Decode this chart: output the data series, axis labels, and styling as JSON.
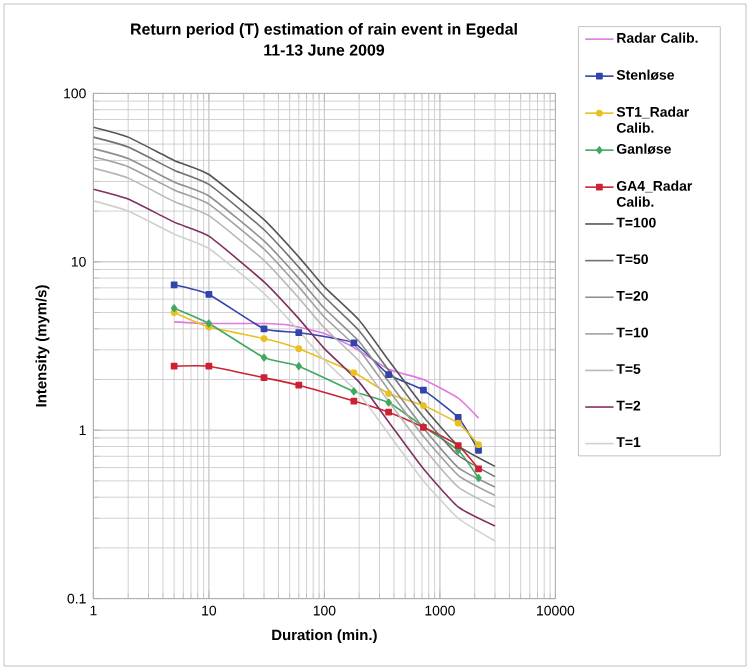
{
  "chart_data": {
    "type": "line",
    "title": "Return period (T) estimation of rain event in Egedal",
    "subtitle": "11-13 June 2009",
    "xlabel": "Duration (min.)",
    "ylabel": "Intensity (mym/s)",
    "log": "xy",
    "grid": true,
    "legend": "right",
    "xlim": [
      1,
      10000
    ],
    "ylim": [
      0.1,
      100
    ],
    "xticks": [
      1,
      10,
      100,
      1000,
      10000
    ],
    "yticks": [
      0.1,
      1,
      10,
      100
    ],
    "series": [
      {
        "name": "Radar Calib.",
        "color": "#e07ae0",
        "marker": "none",
        "x": [
          5,
          10,
          30,
          50,
          100,
          180,
          360,
          720,
          1440,
          2160
        ],
        "values": [
          4.4,
          4.3,
          4.3,
          4.2,
          3.75,
          3.1,
          2.3,
          2.0,
          1.55,
          1.18
        ]
      },
      {
        "name": "Stenløse",
        "color": "#3344aa",
        "marker": "square",
        "x": [
          5,
          10,
          30,
          60,
          180,
          360,
          720,
          1440,
          2160
        ],
        "values": [
          7.3,
          6.4,
          4.0,
          3.8,
          3.3,
          2.14,
          1.73,
          1.19,
          0.76
        ]
      },
      {
        "name": "ST1_Radar Calib.",
        "color": "#e8c020",
        "marker": "circle",
        "x": [
          5,
          10,
          30,
          60,
          180,
          360,
          720,
          1440,
          2160
        ],
        "values": [
          5.0,
          4.1,
          3.5,
          3.05,
          2.2,
          1.65,
          1.4,
          1.1,
          0.82
        ]
      },
      {
        "name": "Ganløse",
        "color": "#40a860",
        "marker": "diamond",
        "x": [
          5,
          10,
          30,
          60,
          180,
          360,
          720,
          1440,
          2160
        ],
        "values": [
          5.3,
          4.3,
          2.7,
          2.4,
          1.7,
          1.46,
          1.05,
          0.76,
          0.52
        ]
      },
      {
        "name": "GA4_Radar Calib.",
        "color": "#cc2233",
        "marker": "square",
        "x": [
          5,
          10,
          30,
          60,
          180,
          360,
          720,
          1440,
          2160
        ],
        "values": [
          2.4,
          2.4,
          2.05,
          1.85,
          1.49,
          1.28,
          1.04,
          0.81,
          0.59
        ]
      },
      {
        "name": "T=100",
        "color": "#555555",
        "marker": "none",
        "x": [
          1,
          2,
          5,
          10,
          30,
          60,
          100,
          200,
          360,
          720,
          1440,
          3000
        ],
        "values": [
          63,
          55,
          40,
          33,
          17.8,
          10.7,
          7.1,
          4.5,
          2.6,
          1.38,
          0.81,
          0.61
        ]
      },
      {
        "name": "T=50",
        "color": "#707070",
        "marker": "none",
        "x": [
          1,
          2,
          5,
          10,
          30,
          60,
          100,
          200,
          360,
          720,
          1440,
          3000
        ],
        "values": [
          55,
          48,
          35,
          28.8,
          15.5,
          9.3,
          6.2,
          3.9,
          2.27,
          1.2,
          0.71,
          0.53
        ]
      },
      {
        "name": "T=20",
        "color": "#909090",
        "marker": "none",
        "x": [
          1,
          2,
          5,
          10,
          30,
          60,
          100,
          200,
          360,
          720,
          1440,
          3000
        ],
        "values": [
          47,
          41,
          29.8,
          24.6,
          13.3,
          8.0,
          5.3,
          3.36,
          1.94,
          1.03,
          0.6,
          0.46
        ]
      },
      {
        "name": "T=10",
        "color": "#a0a0a0",
        "marker": "none",
        "x": [
          1,
          2,
          5,
          10,
          30,
          60,
          100,
          200,
          360,
          720,
          1440,
          3000
        ],
        "values": [
          42,
          36.7,
          26.7,
          22,
          11.9,
          7.1,
          4.7,
          3.0,
          1.73,
          0.92,
          0.54,
          0.41
        ]
      },
      {
        "name": "T=5",
        "color": "#b8b8b8",
        "marker": "none",
        "x": [
          1,
          2,
          5,
          10,
          30,
          60,
          100,
          200,
          360,
          720,
          1440,
          3000
        ],
        "values": [
          36,
          31.4,
          22.8,
          18.8,
          10.2,
          6.1,
          4.05,
          2.57,
          1.48,
          0.79,
          0.46,
          0.35
        ]
      },
      {
        "name": "T=2",
        "color": "#803060",
        "marker": "none",
        "x": [
          1,
          2,
          5,
          10,
          30,
          60,
          100,
          200,
          360,
          720,
          1440,
          3000
        ],
        "values": [
          27,
          23.6,
          17.2,
          14.2,
          7.6,
          4.6,
          3.05,
          1.93,
          1.12,
          0.59,
          0.35,
          0.27
        ]
      },
      {
        "name": "T=1",
        "color": "#d0d0d0",
        "marker": "none",
        "x": [
          1,
          2,
          5,
          10,
          30,
          60,
          100,
          200,
          360,
          720,
          1440,
          3000
        ],
        "values": [
          23,
          20,
          14.6,
          12,
          6.5,
          3.9,
          2.6,
          1.64,
          0.95,
          0.5,
          0.3,
          0.22
        ]
      }
    ]
  }
}
